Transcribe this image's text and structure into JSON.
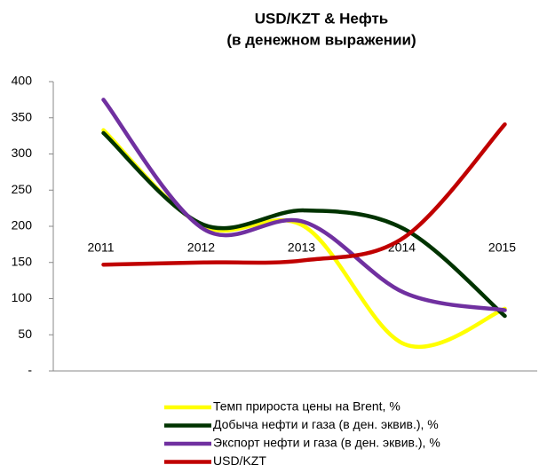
{
  "chart_data": {
    "type": "line",
    "title": "USD/KZT & Нефть",
    "subtitle": "(в денежном выражении)",
    "categories": [
      "2011",
      "2012",
      "2013",
      "2014",
      "2015"
    ],
    "series": [
      {
        "name": "Темп прироста цены на Brent, %",
        "color": "#ffff00",
        "values": [
          333,
          200,
          200,
          37,
          86
        ]
      },
      {
        "name": "Добыча нефти и газа (в ден. эквив.), %",
        "color": "#003300",
        "values": [
          329,
          202,
          222,
          196,
          76
        ]
      },
      {
        "name": "Экспорт нефти и газа (в ден. эквив.), %",
        "color": "#7030a0",
        "values": [
          375,
          196,
          206,
          108,
          84
        ]
      },
      {
        "name": "USD/KZT",
        "color": "#c00000",
        "values": [
          147,
          150,
          153,
          185,
          341
        ]
      }
    ],
    "ylim": [
      0,
      400
    ],
    "yticks": [
      {
        "value": 0,
        "label": "-"
      },
      50,
      100,
      150,
      200,
      250,
      300,
      350,
      400
    ],
    "legend": "bottom"
  }
}
